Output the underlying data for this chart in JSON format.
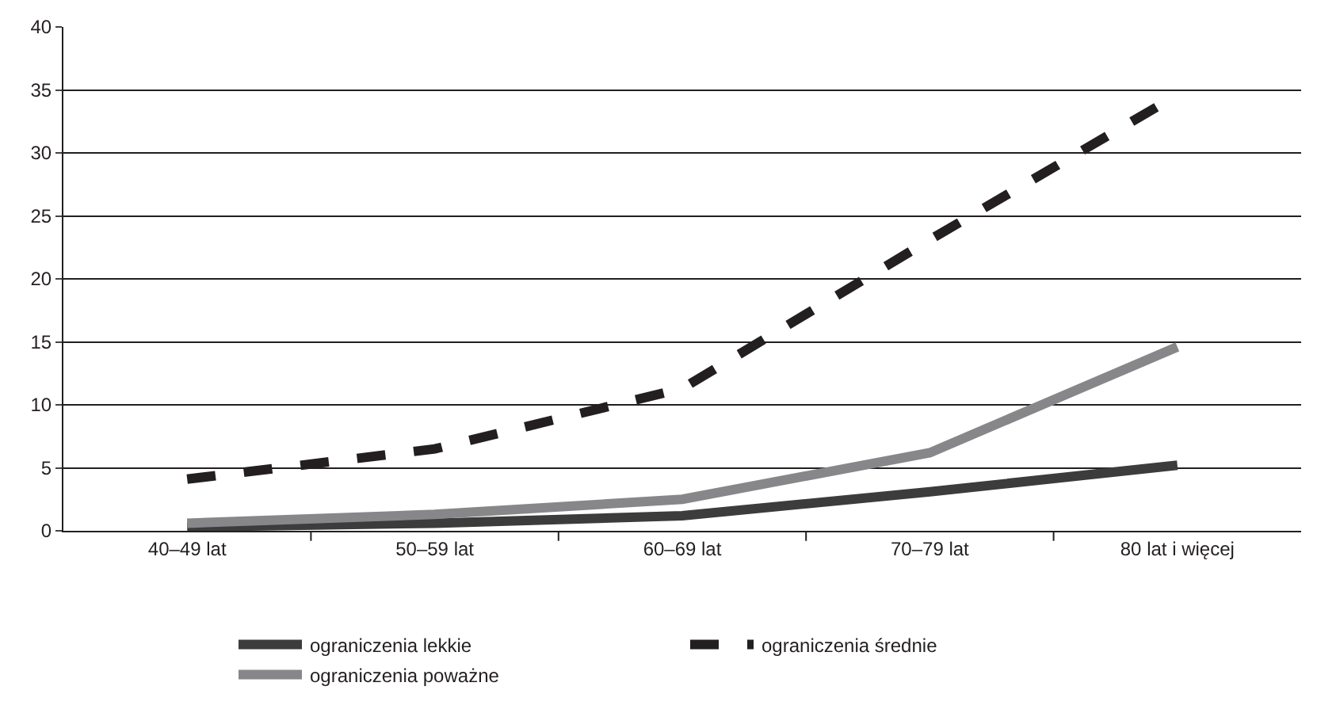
{
  "chart_data": {
    "type": "line",
    "categories": [
      "40–49 lat",
      "50–59 lat",
      "60–69 lat",
      "70–79 lat",
      "80 lat i więcej"
    ],
    "series": [
      {
        "name": "ograniczenia lekkie",
        "color": "#3c3c3c",
        "line_style": "solid",
        "values": [
          0.3,
          0.6,
          1.2,
          3.1,
          5.2
        ]
      },
      {
        "name": "ograniczenia średnie",
        "color": "#231f20",
        "line_style": "dashed",
        "values": [
          4.1,
          6.5,
          11.3,
          23.1,
          34.6
        ]
      },
      {
        "name": "ograniczenia poważne",
        "color": "#87878a",
        "line_style": "solid",
        "values": [
          0.6,
          1.3,
          2.5,
          6.2,
          14.6
        ]
      }
    ],
    "ylim": [
      0,
      40
    ],
    "yticks": [
      0,
      5,
      10,
      15,
      20,
      25,
      30,
      35,
      40
    ],
    "grid": "y",
    "legend": "bottom",
    "marker": "none"
  }
}
